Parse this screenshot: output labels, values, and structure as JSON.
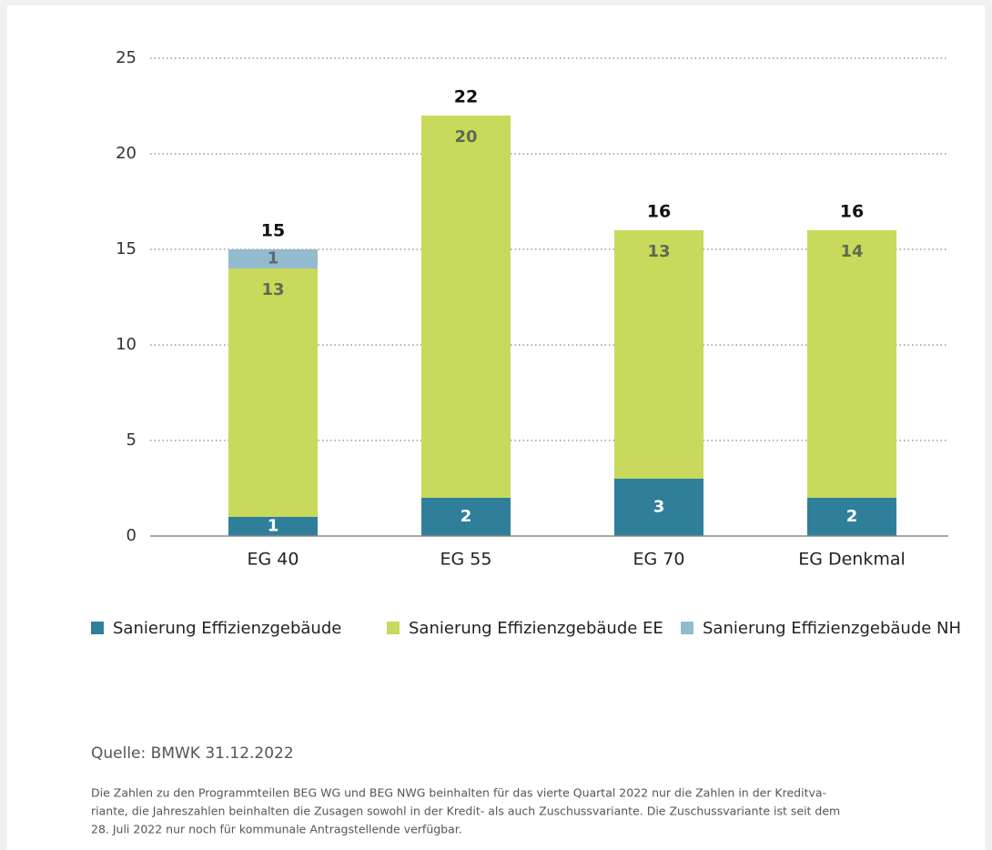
{
  "chart_data": {
    "type": "stacked_bar",
    "categories": [
      "EG 40",
      "EG 55",
      "EG 70",
      "EG Denkmal"
    ],
    "series": [
      {
        "name": "Sanierung Effizienzgebäude",
        "color": "#2f7f9b",
        "label_color": "#ffffff",
        "values": [
          1,
          2,
          3,
          2
        ]
      },
      {
        "name": "Sanierung Effizienzgebäude EE",
        "color": "#c9d95b",
        "label_color": "#5f6a55",
        "values": [
          13,
          20,
          13,
          14
        ]
      },
      {
        "name": "Sanierung Effizienzgebäude NH",
        "color": "#93bacd",
        "label_color": "#5f6a70",
        "values": [
          1,
          null,
          null,
          null
        ]
      }
    ],
    "totals": [
      15,
      22,
      16,
      16
    ],
    "ylim": [
      0,
      25
    ],
    "yticks": [
      0,
      5,
      10,
      15,
      20,
      25
    ],
    "grid": true,
    "legend": "bottom",
    "source": "Quelle: BMWK 31.12.2022",
    "footnote": [
      "Die Zahlen zu den Programmteilen BEG WG und BEG NWG beinhalten für das vierte Quartal 2022 nur die Zahlen in der Kreditva-",
      "riante, die Jahreszahlen beinhalten die Zusagen sowohl in der Kredit- als auch Zuschussvariante. Die Zuschussvariante ist seit dem",
      "28. Juli 2022 nur noch für kommunale Antragstellende verfügbar."
    ]
  }
}
